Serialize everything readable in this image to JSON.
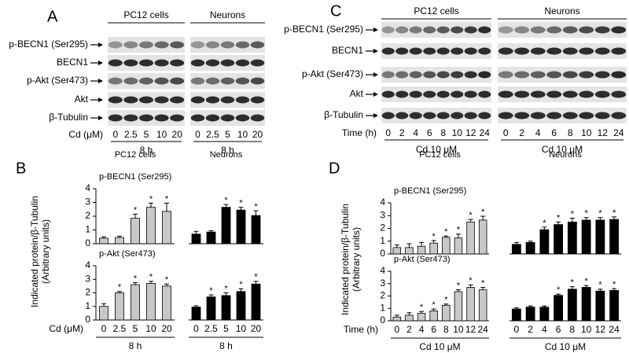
{
  "blots": [
    {
      "panel": "A",
      "groups": [
        "PC12 cells",
        "Neurons"
      ],
      "rows": [
        "p-BECN1 (Ser295)",
        "BECN1",
        "p-Akt (Ser473)",
        "Akt",
        "β-Tubulin"
      ],
      "x_label": "Cd (μM)",
      "lanes": [
        [
          "0",
          "2.5",
          "5",
          "10",
          "20"
        ],
        [
          "0",
          "2.5",
          "5",
          "10",
          "20"
        ]
      ],
      "conditions": [
        "8 h",
        "8 h"
      ]
    },
    {
      "panel": "C",
      "groups": [
        "PC12 cells",
        "Neurons"
      ],
      "rows": [
        "p-BECN1 (Ser295)",
        "BECN1",
        "p-Akt (Ser473)",
        "Akt",
        "β-Tubulin"
      ],
      "x_label": "Time (h)",
      "lanes": [
        [
          "0",
          "2",
          "4",
          "6",
          "8",
          "10",
          "12",
          "24"
        ],
        [
          "0",
          "2",
          "4",
          "6",
          "8",
          "10",
          "12",
          "24"
        ]
      ],
      "conditions": [
        "Cd 10 μM",
        "Cd 10 μM"
      ]
    }
  ],
  "bar_panels": [
    {
      "panel": "B",
      "groups": [
        "PC12 cells",
        "Neurons"
      ],
      "y_label": [
        "Indicated protein/β-Tubulin",
        "(Arbitrary units)"
      ],
      "x_label": "Cd (μM)",
      "conditions": [
        "8 h",
        "8 h"
      ]
    },
    {
      "panel": "D",
      "groups": [
        "PC12 cells",
        "Neurons"
      ],
      "y_label": [
        "Indicated protein/β-Tubulin",
        "(Arbitrary units)"
      ],
      "x_label": "Time (h)",
      "conditions": [
        "Cd 10 μM",
        "Cd 10 μM"
      ]
    }
  ],
  "chart_data": [
    {
      "type": "bar",
      "title": "p-BECN1 (Ser295)",
      "values": [
        0.4,
        0.45,
        1.85,
        2.65,
        2.35
      ],
      "errors": [
        0.1,
        0.1,
        0.3,
        0.3,
        0.6
      ],
      "significant": [
        false,
        false,
        true,
        true,
        true
      ],
      "annotation": "*",
      "color": "#c8c8c8",
      "ylim": [
        0,
        4
      ],
      "yticks": [
        0,
        1,
        2,
        3,
        4
      ]
    },
    {
      "type": "bar",
      "values": [
        0.7,
        0.85,
        2.65,
        2.45,
        2.05
      ],
      "errors": [
        0.2,
        0.1,
        0.2,
        0.2,
        0.35
      ],
      "significant": [
        false,
        false,
        true,
        true,
        true
      ],
      "annotation": "*",
      "color": "#000000",
      "ylim": [
        0,
        4
      ]
    },
    {
      "type": "bar",
      "title": "p-Akt (Ser473)",
      "categories": [
        "0",
        "2.5",
        "5",
        "10",
        "20"
      ],
      "values": [
        1.0,
        2.0,
        2.6,
        2.7,
        2.5
      ],
      "errors": [
        0.2,
        0.1,
        0.15,
        0.15,
        0.15
      ],
      "significant": [
        false,
        true,
        true,
        true,
        true
      ],
      "annotation": "*",
      "color": "#c8c8c8",
      "ylim": [
        0,
        4
      ],
      "yticks": [
        0,
        1,
        2,
        3,
        4
      ]
    },
    {
      "type": "bar",
      "categories": [
        "0",
        "2.5",
        "5",
        "10",
        "20"
      ],
      "values": [
        0.95,
        1.7,
        1.8,
        2.1,
        2.65
      ],
      "errors": [
        0.1,
        0.15,
        0.2,
        0.2,
        0.2
      ],
      "significant": [
        false,
        true,
        true,
        true,
        true
      ],
      "annotation": "*",
      "color": "#000000",
      "ylim": [
        0,
        4
      ]
    },
    {
      "type": "bar",
      "title": "p-BECN1 (Ser295)",
      "values": [
        0.5,
        0.5,
        0.6,
        0.85,
        1.3,
        1.25,
        2.5,
        2.65
      ],
      "errors": [
        0.2,
        0.3,
        0.3,
        0.2,
        0.1,
        0.3,
        0.2,
        0.3
      ],
      "significant": [
        false,
        false,
        false,
        true,
        true,
        true,
        true,
        true
      ],
      "annotation": "*",
      "color": "#c8c8c8",
      "ylim": [
        0,
        4
      ],
      "yticks": [
        0,
        1,
        2,
        3,
        4
      ]
    },
    {
      "type": "bar",
      "values": [
        0.75,
        0.9,
        1.9,
        2.3,
        2.5,
        2.65,
        2.65,
        2.7
      ],
      "errors": [
        0.15,
        0.1,
        0.2,
        0.2,
        0.3,
        0.2,
        0.2,
        0.2
      ],
      "significant": [
        false,
        false,
        true,
        true,
        true,
        true,
        true,
        true
      ],
      "annotation": "*",
      "color": "#000000",
      "ylim": [
        0,
        4
      ]
    },
    {
      "type": "bar",
      "title": "p-Akt (Ser473)",
      "categories": [
        "0",
        "2",
        "4",
        "6",
        "8",
        "10",
        "12",
        "24"
      ],
      "values": [
        0.3,
        0.45,
        0.6,
        0.8,
        1.25,
        2.35,
        2.7,
        2.5
      ],
      "errors": [
        0.15,
        0.2,
        0.15,
        0.15,
        0.1,
        0.15,
        0.2,
        0.2
      ],
      "significant": [
        false,
        false,
        true,
        true,
        true,
        true,
        true,
        true
      ],
      "annotation": "*",
      "color": "#c8c8c8",
      "ylim": [
        0,
        4
      ],
      "yticks": [
        0,
        1,
        2,
        3,
        4
      ]
    },
    {
      "type": "bar",
      "categories": [
        "0",
        "2",
        "4",
        "6",
        "8",
        "10",
        "12",
        "24"
      ],
      "values": [
        0.95,
        1.1,
        1.1,
        2.05,
        2.55,
        2.7,
        2.4,
        2.45
      ],
      "errors": [
        0.1,
        0.1,
        0.1,
        0.1,
        0.2,
        0.15,
        0.15,
        0.15
      ],
      "significant": [
        false,
        false,
        false,
        true,
        true,
        true,
        true,
        true
      ],
      "annotation": "*",
      "color": "#000000",
      "ylim": [
        0,
        4
      ]
    }
  ]
}
